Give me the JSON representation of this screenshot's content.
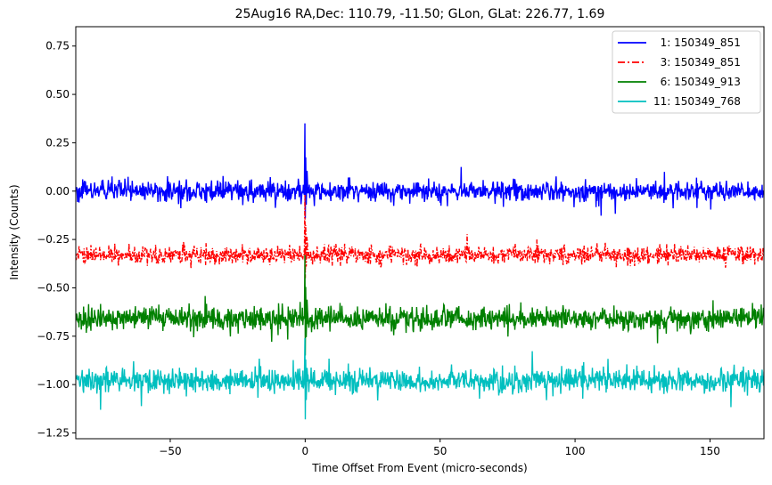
{
  "chart_data": {
    "type": "line",
    "title": "25Aug16 RA,Dec:  110.79, -11.50; GLon, GLat:  226.77,   1.69",
    "xlabel": "Time Offset From Event (micro-seconds)",
    "ylabel": "Intensity (Counts)",
    "xlim": [
      -85,
      170
    ],
    "ylim": [
      -1.28,
      0.85
    ],
    "xticks": [
      -50,
      0,
      50,
      100,
      150
    ],
    "xtick_labels": [
      "−50",
      "0",
      "50",
      "100",
      "150"
    ],
    "yticks": [
      0.75,
      0.5,
      0.25,
      0.0,
      -0.25,
      -0.5,
      -0.75,
      -1.0,
      -1.25
    ],
    "ytick_labels": [
      "0.75",
      "0.50",
      "0.25",
      "0.00",
      "−0.25",
      "−0.50",
      "−0.75",
      "−1.00",
      "−1.25"
    ],
    "legend_position": "top-right",
    "grid": false,
    "series": [
      {
        "name": "  1: 150349_851",
        "color": "#0000ff",
        "style": "solid",
        "baseline": 0.0,
        "noise": 0.035,
        "spike_peak": 0.35,
        "spike_dip": -0.14
      },
      {
        "name": "  3: 150349_851",
        "color": "#ff0000",
        "style": "dashdot",
        "baseline": -0.33,
        "noise": 0.03,
        "spike_peak": -0.02,
        "spike_dip": -0.45
      },
      {
        "name": "  6: 150349_913",
        "color": "#008000",
        "style": "solid",
        "baseline": -0.66,
        "noise": 0.04,
        "spike_peak": -0.33,
        "spike_dip": -0.85
      },
      {
        "name": "11: 150349_768",
        "color": "#00bfbf",
        "style": "solid",
        "baseline": -0.98,
        "noise": 0.04,
        "spike_peak": -0.76,
        "spike_dip": -1.18
      }
    ]
  }
}
